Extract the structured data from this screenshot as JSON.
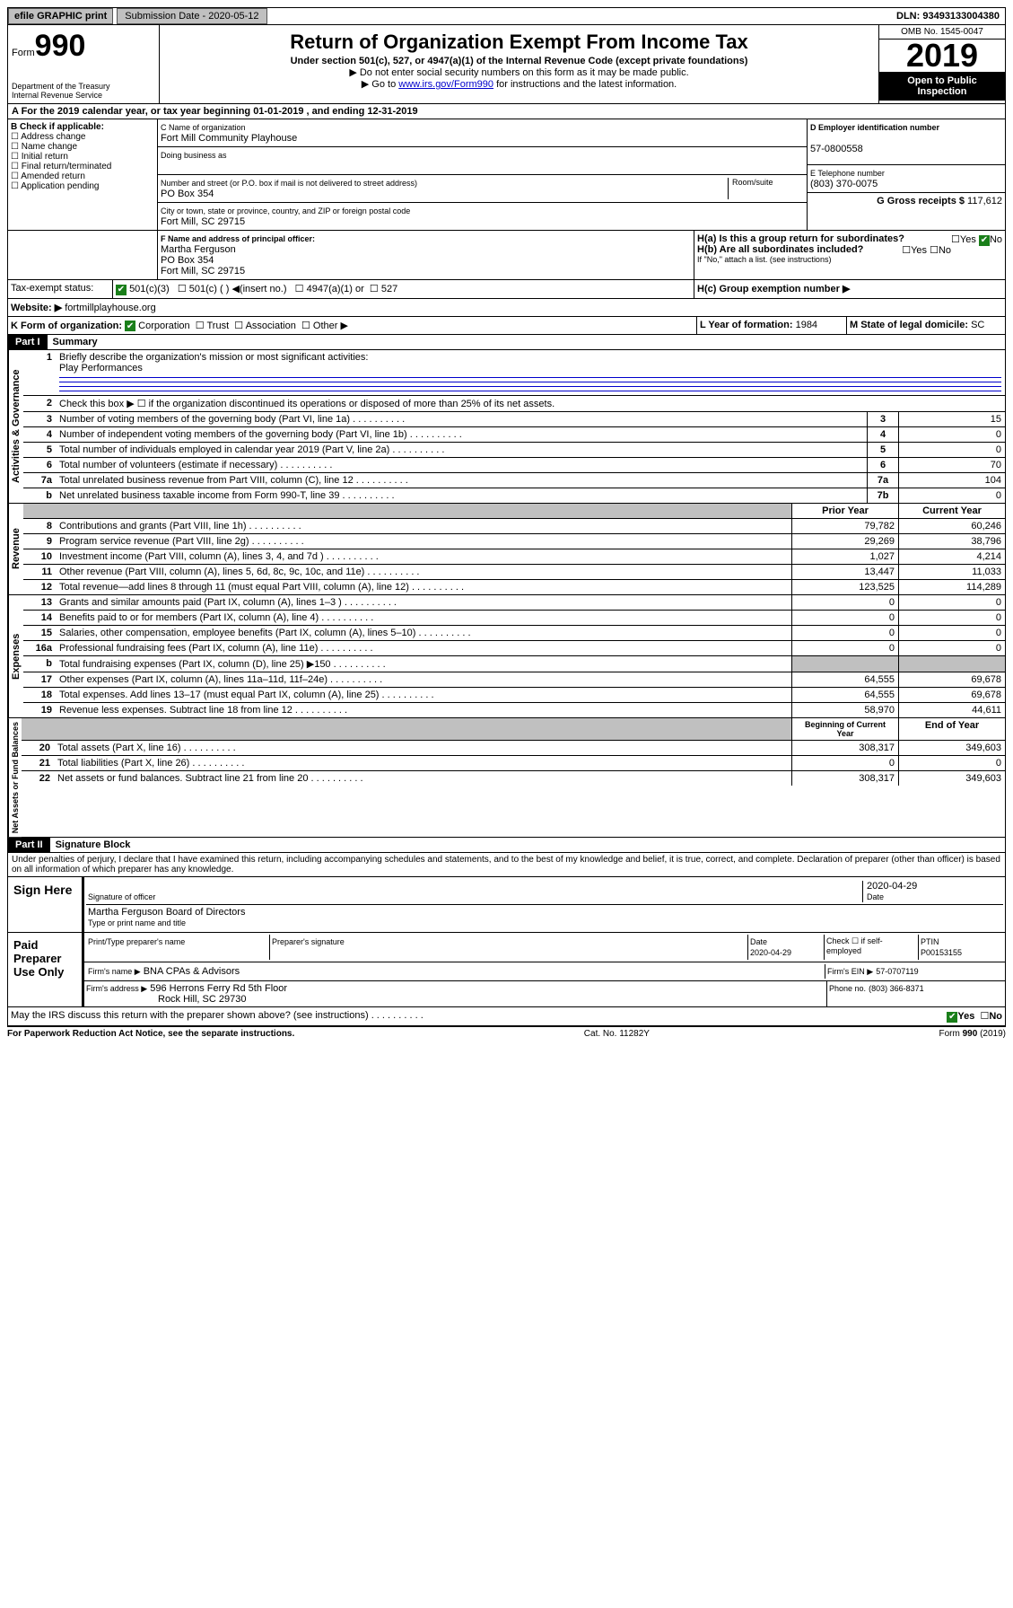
{
  "topbar": {
    "efile": "efile GRAPHIC print",
    "submission": "Submission Date - 2020-05-12",
    "dln": "DLN: 93493133004380"
  },
  "header": {
    "form": "Form",
    "num": "990",
    "dept": "Department of the Treasury",
    "irs": "Internal Revenue Service",
    "title": "Return of Organization Exempt From Income Tax",
    "sub": "Under section 501(c), 527, or 4947(a)(1) of the Internal Revenue Code (except private foundations)",
    "l1": "▶ Do not enter social security numbers on this form as it may be made public.",
    "l2_pre": "▶ Go to ",
    "l2_link": "www.irs.gov/Form990",
    "l2_post": " for instructions and the latest information.",
    "omb": "OMB No. 1545-0047",
    "year": "2019",
    "open": "Open to Public Inspection"
  },
  "sectionA": "A For the 2019 calendar year, or tax year beginning 01-01-2019   , and ending 12-31-2019",
  "sectionB": {
    "title": "B Check if applicable:",
    "opts": [
      "Address change",
      "Name change",
      "Initial return",
      "Final return/terminated",
      "Amended return",
      "Application pending"
    ]
  },
  "sectionC": {
    "name_lbl": "C Name of organization",
    "name": "Fort Mill Community Playhouse",
    "dba_lbl": "Doing business as",
    "dba": "",
    "addr_lbl": "Number and street (or P.O. box if mail is not delivered to street address)",
    "room": "Room/suite",
    "addr": "PO Box 354",
    "city_lbl": "City or town, state or province, country, and ZIP or foreign postal code",
    "city": "Fort Mill, SC  29715"
  },
  "sectionD": {
    "lbl": "D Employer identification number",
    "val": "57-0800558"
  },
  "sectionE": {
    "lbl": "E Telephone number",
    "val": "(803) 370-0075"
  },
  "sectionG": {
    "lbl": "G Gross receipts $",
    "val": "117,612"
  },
  "sectionF": {
    "lbl": "F  Name and address of principal officer:",
    "name": "Martha Ferguson",
    "addr": "PO Box 354",
    "city": "Fort Mill, SC  29715"
  },
  "sectionH": {
    "a": "H(a)  Is this a group return for subordinates?",
    "b": "H(b)  Are all subordinates included?",
    "note": "If \"No,\" attach a list. (see instructions)",
    "c": "H(c)  Group exemption number ▶",
    "yes": "Yes",
    "no": "No"
  },
  "sectionI": {
    "lbl": "Tax-exempt status:",
    "c3": "501(c)(3)",
    "c": "501(c) (  ) ◀(insert no.)",
    "a": "4947(a)(1) or",
    "s": "527"
  },
  "sectionJ": {
    "lbl": "Website: ▶",
    "val": "fortmillplayhouse.org"
  },
  "sectionK": {
    "lbl": "K Form of organization:",
    "corp": "Corporation",
    "trust": "Trust",
    "assoc": "Association",
    "other": "Other ▶"
  },
  "sectionL": {
    "lbl": "L Year of formation:",
    "val": "1984"
  },
  "sectionM": {
    "lbl": "M State of legal domicile:",
    "val": "SC"
  },
  "part1": {
    "hdr": "Part I",
    "title": "Summary",
    "l1": "Briefly describe the organization's mission or most significant activities:",
    "l1v": "Play Performances",
    "l2": "Check this box ▶ ☐  if the organization discontinued its operations or disposed of more than 25% of its net assets.",
    "rows_top": [
      {
        "n": "3",
        "t": "Number of voting members of the governing body (Part VI, line 1a)",
        "b": "3",
        "v": "15"
      },
      {
        "n": "4",
        "t": "Number of independent voting members of the governing body (Part VI, line 1b)",
        "b": "4",
        "v": "0"
      },
      {
        "n": "5",
        "t": "Total number of individuals employed in calendar year 2019 (Part V, line 2a)",
        "b": "5",
        "v": "0"
      },
      {
        "n": "6",
        "t": "Total number of volunteers (estimate if necessary)",
        "b": "6",
        "v": "70"
      },
      {
        "n": "7a",
        "t": "Total unrelated business revenue from Part VIII, column (C), line 12",
        "b": "7a",
        "v": "104"
      },
      {
        "n": "b",
        "t": "Net unrelated business taxable income from Form 990-T, line 39",
        "b": "7b",
        "v": "0"
      }
    ],
    "hdr_prior": "Prior Year",
    "hdr_curr": "Current Year",
    "rev": [
      {
        "n": "8",
        "t": "Contributions and grants (Part VIII, line 1h)",
        "p": "79,782",
        "c": "60,246"
      },
      {
        "n": "9",
        "t": "Program service revenue (Part VIII, line 2g)",
        "p": "29,269",
        "c": "38,796"
      },
      {
        "n": "10",
        "t": "Investment income (Part VIII, column (A), lines 3, 4, and 7d )",
        "p": "1,027",
        "c": "4,214"
      },
      {
        "n": "11",
        "t": "Other revenue (Part VIII, column (A), lines 5, 6d, 8c, 9c, 10c, and 11e)",
        "p": "13,447",
        "c": "11,033"
      },
      {
        "n": "12",
        "t": "Total revenue—add lines 8 through 11 (must equal Part VIII, column (A), line 12)",
        "p": "123,525",
        "c": "114,289"
      }
    ],
    "exp": [
      {
        "n": "13",
        "t": "Grants and similar amounts paid (Part IX, column (A), lines 1–3 )",
        "p": "0",
        "c": "0"
      },
      {
        "n": "14",
        "t": "Benefits paid to or for members (Part IX, column (A), line 4)",
        "p": "0",
        "c": "0"
      },
      {
        "n": "15",
        "t": "Salaries, other compensation, employee benefits (Part IX, column (A), lines 5–10)",
        "p": "0",
        "c": "0"
      },
      {
        "n": "16a",
        "t": "Professional fundraising fees (Part IX, column (A), line 11e)",
        "p": "0",
        "c": "0"
      },
      {
        "n": "b",
        "t": "Total fundraising expenses (Part IX, column (D), line 25) ▶150",
        "p": "",
        "c": "",
        "shade": true
      },
      {
        "n": "17",
        "t": "Other expenses (Part IX, column (A), lines 11a–11d, 11f–24e)",
        "p": "64,555",
        "c": "69,678"
      },
      {
        "n": "18",
        "t": "Total expenses. Add lines 13–17 (must equal Part IX, column (A), line 25)",
        "p": "64,555",
        "c": "69,678"
      },
      {
        "n": "19",
        "t": "Revenue less expenses. Subtract line 18 from line 12",
        "p": "58,970",
        "c": "44,611"
      }
    ],
    "hdr_beg": "Beginning of Current Year",
    "hdr_end": "End of Year",
    "net": [
      {
        "n": "20",
        "t": "Total assets (Part X, line 16)",
        "p": "308,317",
        "c": "349,603"
      },
      {
        "n": "21",
        "t": "Total liabilities (Part X, line 26)",
        "p": "0",
        "c": "0"
      },
      {
        "n": "22",
        "t": "Net assets or fund balances. Subtract line 21 from line 20",
        "p": "308,317",
        "c": "349,603"
      }
    ],
    "tabs": [
      "Activities & Governance",
      "Revenue",
      "Expenses",
      "Net Assets or Fund Balances"
    ]
  },
  "part2": {
    "hdr": "Part II",
    "title": "Signature Block",
    "decl": "Under penalties of perjury, I declare that I have examined this return, including accompanying schedules and statements, and to the best of my knowledge and belief, it is true, correct, and complete. Declaration of preparer (other than officer) is based on all information of which preparer has any knowledge.",
    "sign": "Sign Here",
    "sig_lbl": "Signature of officer",
    "date": "2020-04-29",
    "date_lbl": "Date",
    "officer": "Martha Ferguson  Board of Directors",
    "type_lbl": "Type or print name and title",
    "paid": "Paid Preparer Use Only",
    "prep_name_lbl": "Print/Type preparer's name",
    "prep_sig_lbl": "Preparer's signature",
    "prep_date_lbl": "Date",
    "prep_date": "2020-04-29",
    "self": "Check ☐  if self-employed",
    "ptin_lbl": "PTIN",
    "ptin": "P00153155",
    "firm_name_lbl": "Firm's name   ▶",
    "firm_name": "BNA CPAs & Advisors",
    "firm_ein_lbl": "Firm's EIN ▶",
    "firm_ein": "57-0707119",
    "firm_addr_lbl": "Firm's address ▶",
    "firm_addr": "596 Herrons Ferry Rd 5th Floor",
    "firm_city": "Rock Hill, SC  29730",
    "phone_lbl": "Phone no.",
    "phone": "(803) 366-8371",
    "discuss": "May the IRS discuss this return with the preparer shown above? (see instructions)",
    "yes": "Yes",
    "no": "No"
  },
  "footer": {
    "l": "For Paperwork Reduction Act Notice, see the separate instructions.",
    "m": "Cat. No. 11282Y",
    "r": "Form 990 (2019)"
  }
}
